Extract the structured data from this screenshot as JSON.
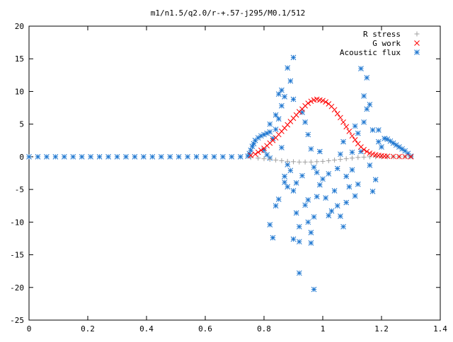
{
  "chart_data": {
    "type": "scatter",
    "title": "m1/n1.5/q2.0/r-+.57-j295/M0.1/512",
    "xlim": [
      0,
      1.4
    ],
    "ylim": [
      -25,
      20
    ],
    "x_ticks": [
      "0",
      "0.2",
      "0.4",
      "0.6",
      "0.8",
      "1",
      "1.2",
      "1.4"
    ],
    "y_ticks": [
      "20",
      "15",
      "10",
      "5",
      "0",
      "-5",
      "-10",
      "-15",
      "-20",
      "-25"
    ],
    "grid": false,
    "legend": "top-right",
    "series": [
      {
        "name": "R stress",
        "marker": "plus",
        "color": "#a0a0a0",
        "points": [
          [
            0.755,
            -0.1
          ],
          [
            0.78,
            -0.2
          ],
          [
            0.8,
            -0.3
          ],
          [
            0.82,
            -0.4
          ],
          [
            0.84,
            -0.5
          ],
          [
            0.86,
            -0.6
          ],
          [
            0.88,
            -0.7
          ],
          [
            0.9,
            -0.75
          ],
          [
            0.92,
            -0.8
          ],
          [
            0.94,
            -0.8
          ],
          [
            0.96,
            -0.8
          ],
          [
            0.98,
            -0.75
          ],
          [
            1.0,
            -0.7
          ],
          [
            1.02,
            -0.6
          ],
          [
            1.04,
            -0.5
          ],
          [
            1.06,
            -0.4
          ],
          [
            1.08,
            -0.3
          ],
          [
            1.1,
            -0.2
          ],
          [
            1.12,
            -0.1
          ],
          [
            1.14,
            -0.05
          ],
          [
            1.16,
            0.0
          ],
          [
            1.18,
            0.0
          ],
          [
            1.2,
            0.0
          ],
          [
            1.22,
            0.0
          ],
          [
            1.24,
            0.0
          ],
          [
            1.26,
            0.0
          ],
          [
            1.28,
            0.0
          ],
          [
            1.3,
            0.0
          ]
        ]
      },
      {
        "name": "G work",
        "marker": "cross",
        "color": "#ff0000",
        "points": [
          [
            0.755,
            0.2
          ],
          [
            0.77,
            0.4
          ],
          [
            0.78,
            0.7
          ],
          [
            0.79,
            1.0
          ],
          [
            0.8,
            1.3
          ],
          [
            0.81,
            1.7
          ],
          [
            0.82,
            2.1
          ],
          [
            0.83,
            2.5
          ],
          [
            0.84,
            2.9
          ],
          [
            0.85,
            3.4
          ],
          [
            0.86,
            3.9
          ],
          [
            0.87,
            4.4
          ],
          [
            0.88,
            4.9
          ],
          [
            0.89,
            5.4
          ],
          [
            0.9,
            5.9
          ],
          [
            0.91,
            6.4
          ],
          [
            0.92,
            6.9
          ],
          [
            0.93,
            7.3
          ],
          [
            0.94,
            7.8
          ],
          [
            0.95,
            8.2
          ],
          [
            0.96,
            8.5
          ],
          [
            0.97,
            8.7
          ],
          [
            0.98,
            8.8
          ],
          [
            0.99,
            8.7
          ],
          [
            1.0,
            8.6
          ],
          [
            1.01,
            8.4
          ],
          [
            1.02,
            8.1
          ],
          [
            1.03,
            7.7
          ],
          [
            1.04,
            7.2
          ],
          [
            1.05,
            6.6
          ],
          [
            1.06,
            6.0
          ],
          [
            1.07,
            5.3
          ],
          [
            1.08,
            4.6
          ],
          [
            1.09,
            3.9
          ],
          [
            1.1,
            3.2
          ],
          [
            1.11,
            2.6
          ],
          [
            1.12,
            2.0
          ],
          [
            1.13,
            1.5
          ],
          [
            1.14,
            1.1
          ],
          [
            1.15,
            0.8
          ],
          [
            1.16,
            0.55
          ],
          [
            1.17,
            0.4
          ],
          [
            1.18,
            0.3
          ],
          [
            1.19,
            0.2
          ],
          [
            1.2,
            0.15
          ],
          [
            1.21,
            0.1
          ],
          [
            1.22,
            0.08
          ],
          [
            1.24,
            0.05
          ],
          [
            1.26,
            0.03
          ],
          [
            1.28,
            0.02
          ],
          [
            1.3,
            0.0
          ]
        ]
      },
      {
        "name": "Acoustic flux",
        "marker": "star",
        "color": "#1f77d0",
        "points": [
          [
            0.0,
            0.0
          ],
          [
            0.03,
            0.0
          ],
          [
            0.06,
            0.0
          ],
          [
            0.09,
            0.0
          ],
          [
            0.12,
            0.0
          ],
          [
            0.15,
            0.0
          ],
          [
            0.18,
            0.0
          ],
          [
            0.21,
            0.0
          ],
          [
            0.24,
            0.0
          ],
          [
            0.27,
            0.0
          ],
          [
            0.3,
            0.0
          ],
          [
            0.33,
            0.0
          ],
          [
            0.36,
            0.0
          ],
          [
            0.39,
            0.0
          ],
          [
            0.42,
            0.0
          ],
          [
            0.45,
            0.0
          ],
          [
            0.48,
            0.0
          ],
          [
            0.51,
            0.0
          ],
          [
            0.54,
            0.0
          ],
          [
            0.57,
            0.0
          ],
          [
            0.6,
            0.0
          ],
          [
            0.63,
            0.0
          ],
          [
            0.66,
            0.0
          ],
          [
            0.69,
            0.0
          ],
          [
            0.72,
            0.0
          ],
          [
            0.745,
            0.1
          ],
          [
            0.75,
            0.5
          ],
          [
            0.755,
            1.0
          ],
          [
            0.76,
            1.6
          ],
          [
            0.765,
            2.0
          ],
          [
            0.77,
            2.5
          ],
          [
            0.78,
            2.9
          ],
          [
            0.79,
            3.2
          ],
          [
            0.8,
            3.4
          ],
          [
            0.81,
            3.6
          ],
          [
            0.82,
            3.8
          ],
          [
            0.8,
            1.0
          ],
          [
            0.81,
            0.3
          ],
          [
            0.82,
            -0.2
          ],
          [
            0.83,
            2.8
          ],
          [
            0.84,
            4.2
          ],
          [
            0.85,
            5.8
          ],
          [
            0.86,
            7.8
          ],
          [
            0.87,
            9.2
          ],
          [
            0.88,
            13.6
          ],
          [
            0.9,
            15.2
          ],
          [
            0.89,
            11.6
          ],
          [
            0.9,
            8.8
          ],
          [
            0.85,
            9.6
          ],
          [
            0.82,
            5.0
          ],
          [
            0.84,
            6.4
          ],
          [
            0.86,
            1.4
          ],
          [
            0.87,
            -3.0
          ],
          [
            0.85,
            -6.5
          ],
          [
            0.84,
            -7.5
          ],
          [
            0.82,
            -10.4
          ],
          [
            0.83,
            -12.4
          ],
          [
            0.88,
            -4.6
          ],
          [
            0.89,
            -2.1
          ],
          [
            0.9,
            -5.2
          ],
          [
            0.91,
            -8.6
          ],
          [
            0.92,
            -10.7
          ],
          [
            0.92,
            -13.0
          ],
          [
            0.94,
            -7.4
          ],
          [
            0.95,
            -10.0
          ],
          [
            0.96,
            -11.6
          ],
          [
            0.96,
            -13.2
          ],
          [
            0.97,
            -9.2
          ],
          [
            0.98,
            -6.1
          ],
          [
            0.98,
            -2.4
          ],
          [
            0.92,
            -17.8
          ],
          [
            0.97,
            -20.3
          ],
          [
            0.93,
            6.8
          ],
          [
            0.94,
            5.3
          ],
          [
            0.95,
            3.4
          ],
          [
            0.96,
            1.2
          ],
          [
            0.97,
            -1.6
          ],
          [
            0.99,
            -4.3
          ],
          [
            1.0,
            -3.4
          ],
          [
            1.01,
            -6.3
          ],
          [
            1.02,
            -9.0
          ],
          [
            1.03,
            -8.3
          ],
          [
            1.04,
            -5.2
          ],
          [
            1.05,
            -7.5
          ],
          [
            1.06,
            -9.1
          ],
          [
            1.07,
            -10.7
          ],
          [
            1.05,
            -1.8
          ],
          [
            1.06,
            0.4
          ],
          [
            1.07,
            2.3
          ],
          [
            1.08,
            -3.0
          ],
          [
            1.09,
            -4.6
          ],
          [
            1.1,
            -2.0
          ],
          [
            1.11,
            -6.0
          ],
          [
            1.12,
            -4.2
          ],
          [
            1.13,
            0.8
          ],
          [
            1.14,
            5.3
          ],
          [
            1.15,
            7.3
          ],
          [
            1.13,
            13.5
          ],
          [
            1.14,
            9.3
          ],
          [
            1.15,
            12.1
          ],
          [
            1.16,
            8.0
          ],
          [
            1.12,
            3.6
          ],
          [
            1.17,
            4.1
          ],
          [
            1.18,
            -3.5
          ],
          [
            1.17,
            -5.3
          ],
          [
            1.16,
            -1.3
          ],
          [
            1.19,
            2.3
          ],
          [
            1.2,
            1.5
          ],
          [
            1.19,
            4.1
          ],
          [
            1.21,
            2.8
          ],
          [
            1.22,
            2.7
          ],
          [
            1.23,
            2.4
          ],
          [
            1.24,
            2.1
          ],
          [
            1.25,
            1.8
          ],
          [
            1.26,
            1.5
          ],
          [
            1.27,
            1.2
          ],
          [
            1.28,
            0.9
          ],
          [
            1.29,
            0.5
          ],
          [
            1.3,
            0.1
          ],
          [
            0.86,
            10.2
          ],
          [
            0.87,
            -3.9
          ],
          [
            0.88,
            -1.2
          ],
          [
            0.91,
            -4.0
          ],
          [
            0.93,
            -2.9
          ],
          [
            0.99,
            0.8
          ],
          [
            1.08,
            -7.0
          ],
          [
            1.1,
            0.7
          ],
          [
            1.11,
            4.7
          ],
          [
            0.9,
            -12.6
          ],
          [
            0.95,
            -6.6
          ],
          [
            1.02,
            -2.6
          ]
        ]
      }
    ]
  }
}
